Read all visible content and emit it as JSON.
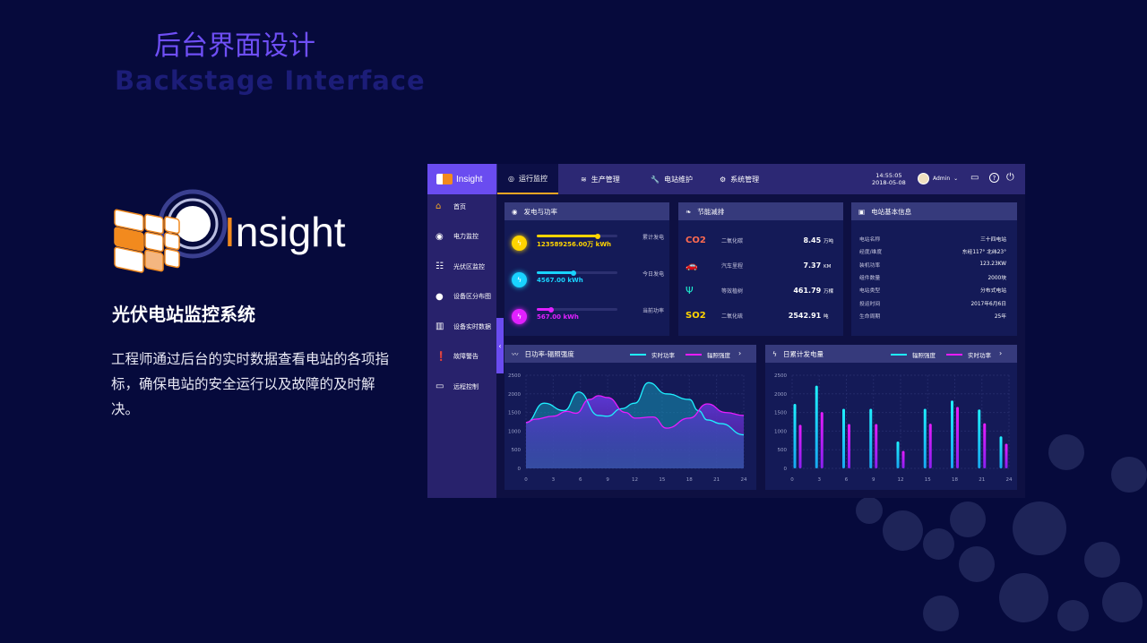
{
  "page": {
    "title_cn": "后台界面设计",
    "title_en": "Backstage Interface",
    "logo_text": "Insight",
    "system_title": "光伏电站监控系统",
    "description": "工程师通过后台的实时数据查看电站的各项指标，确保电站的安全运行以及故障的及时解决。"
  },
  "dashboard": {
    "brand": "Insight",
    "tabs": [
      {
        "label": "运行监控",
        "icon": "gauge-icon",
        "active": true
      },
      {
        "label": "生产管理",
        "icon": "layers-icon"
      },
      {
        "label": "电站维护",
        "icon": "wrench-icon"
      },
      {
        "label": "系统管理",
        "icon": "gear-icon"
      }
    ],
    "time": "14:55:05",
    "date": "2018-05-08",
    "user": "Admin",
    "sidebar": [
      {
        "label": "首页",
        "icon": "home-icon",
        "active": true
      },
      {
        "label": "电力监控",
        "icon": "monitor-dot-icon"
      },
      {
        "label": "光伏区监控",
        "icon": "solar-panel-icon"
      },
      {
        "label": "设备区分布图",
        "icon": "location-pin-icon"
      },
      {
        "label": "设备实时数据",
        "icon": "bar-chart-icon"
      },
      {
        "label": "故障警告",
        "icon": "alert-icon"
      },
      {
        "label": "远程控制",
        "icon": "screen-icon"
      }
    ],
    "power": {
      "title": "发电与功率",
      "items": [
        {
          "value": "123589256.00万 kWh",
          "label": "累计发电",
          "progress": 0.75,
          "color": "#ffd400"
        },
        {
          "value": "4567.00 kWh",
          "label": "今日发电",
          "progress": 0.45,
          "color": "#19d3ff"
        },
        {
          "value": "567.00 kWh",
          "label": "当前功率",
          "progress": 0.18,
          "color": "#e020ff"
        }
      ]
    },
    "energy": {
      "title": "节能减排",
      "items": [
        {
          "symbol": "CO2",
          "label": "二氧化碳",
          "value": "8.45",
          "unit": "万吨"
        },
        {
          "icon": "car-icon",
          "label": "汽车里程",
          "value": "7.37",
          "unit": "KM"
        },
        {
          "icon": "tree-icon",
          "label": "等效植树",
          "value": "461.79",
          "unit": "万棵"
        },
        {
          "symbol": "SO2",
          "label": "二氧化硫",
          "value": "2542.91",
          "unit": "吨"
        }
      ]
    },
    "info": {
      "title": "电站基本信息",
      "rows": [
        [
          "电站名称",
          "三十四电站"
        ],
        [
          "经度/维度",
          "东经117° 北纬23°"
        ],
        [
          "装机功率",
          "123.23KW"
        ],
        [
          "组件数量",
          "2000块"
        ],
        [
          "电站类型",
          "分布式电站"
        ],
        [
          "投运时间",
          "2017年6月6日"
        ],
        [
          "生命周期",
          "25年"
        ]
      ]
    }
  },
  "chart_data": [
    {
      "type": "area",
      "title": "日功率-辐照强度",
      "xlim": [
        0,
        24
      ],
      "ylim": [
        0,
        2500
      ],
      "xticks": [
        0,
        3,
        6,
        9,
        12,
        15,
        18,
        21,
        24
      ],
      "yticks": [
        0,
        500,
        1000,
        1500,
        2000,
        2500
      ],
      "grid": true,
      "legend": "top-right",
      "series": [
        {
          "name": "实时功率",
          "color": "#1ff0ff",
          "x": [
            0,
            2,
            4.2,
            5.8,
            8,
            9,
            10.5,
            12,
            13.5,
            15.5,
            18,
            19,
            20,
            21.5,
            24
          ],
          "y": [
            1230,
            1750,
            1550,
            2050,
            1420,
            1400,
            1600,
            1750,
            2300,
            2000,
            1850,
            1550,
            1300,
            1200,
            900
          ]
        },
        {
          "name": "辐照强度",
          "color": "#e81cff",
          "x": [
            0,
            1,
            3,
            4.5,
            5.5,
            7,
            8,
            9,
            11,
            12,
            14,
            15.5,
            18,
            20,
            22,
            24
          ],
          "y": [
            1230,
            1320,
            1400,
            1530,
            1480,
            1850,
            1950,
            1900,
            1500,
            1350,
            1380,
            1080,
            1350,
            1730,
            1500,
            1420
          ]
        }
      ]
    },
    {
      "type": "bar",
      "title": "日累计发电量",
      "categories": [
        "0",
        "3",
        "6",
        "9",
        "12",
        "15",
        "18",
        "21",
        "24"
      ],
      "ylim": [
        0,
        2500
      ],
      "yticks": [
        0,
        500,
        1000,
        1500,
        2000,
        2500
      ],
      "grid": true,
      "legend": "top-right",
      "series": [
        {
          "name": "辐照强度",
          "color": "#1ff0ff",
          "values": [
            1730,
            2220,
            1600,
            1600,
            720,
            1600,
            1820,
            1580,
            860
          ]
        },
        {
          "name": "实时功率",
          "color": "#e81cff",
          "values": [
            1170,
            1510,
            1190,
            1190,
            470,
            1200,
            1650,
            1210,
            660
          ]
        }
      ]
    }
  ]
}
